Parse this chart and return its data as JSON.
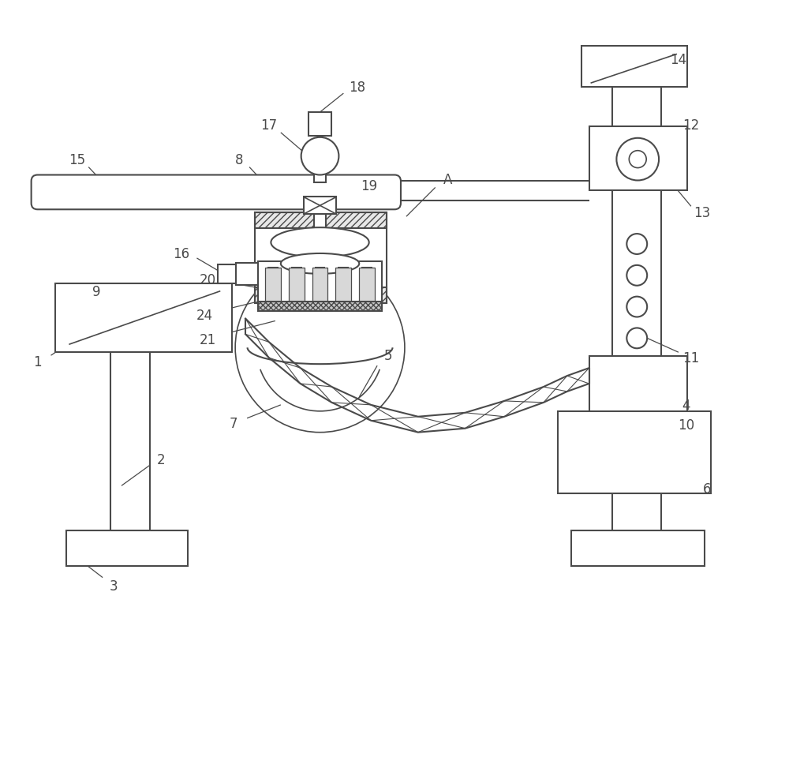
{
  "bg_color": "#ffffff",
  "line_color": "#4a4a4a",
  "line_width": 1.5,
  "label_fontsize": 12,
  "figsize": [
    10,
    9.79
  ],
  "dpi": 100
}
